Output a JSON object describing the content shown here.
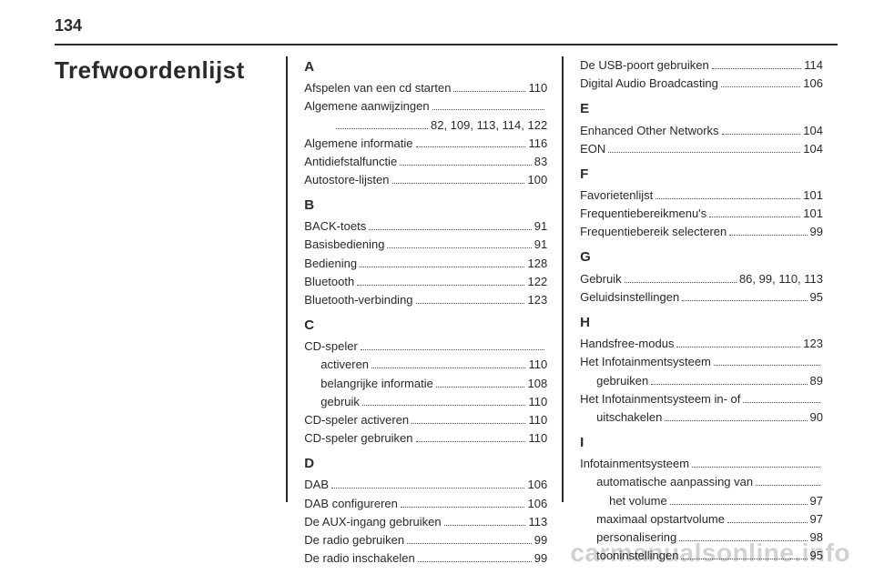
{
  "page_number": "134",
  "title": "Trefwoordenlijst",
  "watermark": "carmanualsonline.info",
  "col1": [
    {
      "type": "letter",
      "text": "A"
    },
    {
      "type": "entry",
      "label": "Afspelen van een cd starten",
      "page": "110"
    },
    {
      "type": "entry",
      "label": "Algemene aanwijzingen",
      "page": ""
    },
    {
      "type": "cont",
      "label": "",
      "page": "82, 109, 113, 114, 122"
    },
    {
      "type": "entry",
      "label": "Algemene informatie",
      "page": "116"
    },
    {
      "type": "entry",
      "label": "Antidiefstalfunctie",
      "page": "83"
    },
    {
      "type": "entry",
      "label": "Autostore-lijsten",
      "page": "100"
    },
    {
      "type": "letter",
      "text": "B"
    },
    {
      "type": "entry",
      "label": "BACK-toets",
      "page": "91"
    },
    {
      "type": "entry",
      "label": "Basisbediening",
      "page": "91"
    },
    {
      "type": "entry",
      "label": "Bediening",
      "page": "128"
    },
    {
      "type": "entry",
      "label": "Bluetooth",
      "page": "122"
    },
    {
      "type": "entry",
      "label": "Bluetooth-verbinding",
      "page": "123"
    },
    {
      "type": "letter",
      "text": "C"
    },
    {
      "type": "entry",
      "label": "CD-speler",
      "page": ""
    },
    {
      "type": "sub",
      "label": "activeren",
      "page": "110"
    },
    {
      "type": "sub",
      "label": "belangrijke informatie",
      "page": "108"
    },
    {
      "type": "sub",
      "label": "gebruik",
      "page": "110"
    },
    {
      "type": "entry",
      "label": "CD-speler activeren",
      "page": "110"
    },
    {
      "type": "entry",
      "label": "CD-speler gebruiken",
      "page": "110"
    },
    {
      "type": "letter",
      "text": "D"
    },
    {
      "type": "entry",
      "label": "DAB",
      "page": "106"
    },
    {
      "type": "entry",
      "label": "DAB configureren",
      "page": "106"
    },
    {
      "type": "entry",
      "label": "De AUX-ingang gebruiken",
      "page": "113"
    },
    {
      "type": "entry",
      "label": "De radio gebruiken",
      "page": "99"
    },
    {
      "type": "entry",
      "label": "De radio inschakelen",
      "page": "99"
    }
  ],
  "col2": [
    {
      "type": "entry",
      "label": "De USB-poort gebruiken",
      "page": "114"
    },
    {
      "type": "entry",
      "label": "Digital Audio Broadcasting",
      "page": "106"
    },
    {
      "type": "letter",
      "text": "E"
    },
    {
      "type": "entry",
      "label": "Enhanced Other Networks",
      "page": "104"
    },
    {
      "type": "entry",
      "label": "EON",
      "page": "104"
    },
    {
      "type": "letter",
      "text": "F"
    },
    {
      "type": "entry",
      "label": "Favorietenlijst",
      "page": "101"
    },
    {
      "type": "entry",
      "label": "Frequentiebereikmenu's",
      "page": "101"
    },
    {
      "type": "entry",
      "label": "Frequentiebereik selecteren",
      "page": "99"
    },
    {
      "type": "letter",
      "text": "G"
    },
    {
      "type": "entry",
      "label": "Gebruik",
      "page": "86, 99, 110, 113"
    },
    {
      "type": "entry",
      "label": "Geluidsinstellingen",
      "page": "95"
    },
    {
      "type": "letter",
      "text": "H"
    },
    {
      "type": "entry",
      "label": "Handsfree-modus",
      "page": "123"
    },
    {
      "type": "entry",
      "label": "Het Infotainmentsysteem",
      "page": ""
    },
    {
      "type": "sub",
      "label": "gebruiken",
      "page": "89"
    },
    {
      "type": "entry",
      "label": "Het Infotainmentsysteem in- of",
      "page": ""
    },
    {
      "type": "sub",
      "label": "uitschakelen",
      "page": "90"
    },
    {
      "type": "letter",
      "text": "I"
    },
    {
      "type": "entry",
      "label": "Infotainmentsysteem",
      "page": ""
    },
    {
      "type": "sub",
      "label": "automatische aanpassing van",
      "page": ""
    },
    {
      "type": "cont",
      "label": "het volume",
      "page": "97"
    },
    {
      "type": "sub",
      "label": "maximaal opstartvolume",
      "page": "97"
    },
    {
      "type": "sub",
      "label": "personalisering",
      "page": "98"
    },
    {
      "type": "sub",
      "label": "tooninstellingen",
      "page": "95"
    }
  ]
}
